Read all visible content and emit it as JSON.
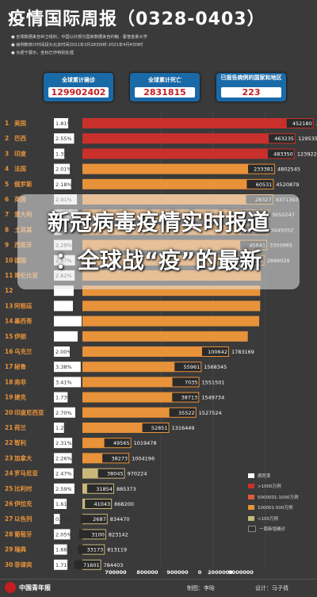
{
  "title": "疫情国际周报（0328-0403）",
  "notes": [
    "● 全球数据来自世卫组织，中国以外部分国家数据来自约翰 · 霍普金斯大学",
    "● 病例数统计时间段为北京时间2021年3月28日9时-2021年4月4日9时",
    "● 为便于展示，坐标已作特别处理"
  ],
  "cards": {
    "confirmed": {
      "label": "全球累计确诊",
      "value": "129902402"
    },
    "deaths": {
      "label": "全球累计死亡",
      "value": "2831815"
    },
    "countries": {
      "label": "已报告病例的国家和地区",
      "value": "223"
    }
  },
  "banner": {
    "line1": "新冠病毒疫情实时报道",
    "line2": "：全球战“疫”的最新"
  },
  "chart_data": {
    "type": "bar",
    "x_ticks": [
      "700000",
      "800000",
      "900000",
      "0",
      "2000000",
      "9000000"
    ],
    "legend": [
      {
        "label": "病死率",
        "color": "#ffffff"
      },
      {
        "label": ">1000万例",
        "color": "#c9302c"
      },
      {
        "label": "5000001-1000万例",
        "color": "#e05a3a"
      },
      {
        "label": "100001-500万例",
        "color": "#e8923a"
      },
      {
        "label": "<100万例",
        "color": "#c8b97a"
      },
      {
        "label": "一周新增确诊",
        "color": "#333333"
      }
    ],
    "rows": [
      {
        "rank": "1",
        "country": "美国",
        "fatality": "1.81%",
        "fatality_value": 1.81,
        "weekly": "452180",
        "total": "30670408",
        "total_value": 30670408,
        "tier": "gt10m"
      },
      {
        "rank": "2",
        "country": "巴西",
        "fatality": "2.55%",
        "fatality_value": 2.55,
        "weekly": "463235",
        "total": "12953597",
        "total_value": 12953597,
        "tier": "gt10m"
      },
      {
        "rank": "3",
        "country": "印度",
        "fatality": "1.32%",
        "fatality_value": 1.32,
        "weekly": "483350",
        "total": "12392260",
        "total_value": 12392260,
        "tier": "gt10m"
      },
      {
        "rank": "4",
        "country": "法国",
        "fatality": "2.01%",
        "fatality_value": 2.01,
        "weekly": "233381",
        "total": "4802545",
        "total_value": 4802545,
        "tier": "1m5m"
      },
      {
        "rank": "5",
        "country": "俄罗斯",
        "fatality": "2.18%",
        "fatality_value": 2.18,
        "weekly": "60531",
        "total": "4520879",
        "total_value": 4520879,
        "tier": "1m5m"
      },
      {
        "rank": "6",
        "country": "英国",
        "fatality": "2.91%",
        "fatality_value": 2.91,
        "weekly": "28327",
        "total": "4371393",
        "total_value": 4371393,
        "tier": "1m5m"
      },
      {
        "rank": "7",
        "country": "意大利",
        "fatality": "3.03%",
        "fatality_value": 3.03,
        "weekly": "137794",
        "total": "3650247",
        "total_value": 3650247,
        "tier": "1m5m"
      },
      {
        "rank": "8",
        "country": "土耳其",
        "fatality": "0.93%",
        "fatality_value": 0.93,
        "weekly": "265937",
        "total": "3445052",
        "total_value": 3445052,
        "tier": "1m5m"
      },
      {
        "rank": "9",
        "country": "西班牙",
        "fatality": "2.29%",
        "fatality_value": 2.29,
        "weekly": "45641",
        "total": "3300965",
        "total_value": 3300965,
        "tier": "1m5m"
      },
      {
        "rank": "10",
        "country": "德国",
        "fatality": "2.67%",
        "fatality_value": 2.67,
        "weekly": "115333",
        "total": "2886029",
        "total_value": 2886029,
        "tier": "1m5m"
      },
      {
        "rank": "11",
        "country": "哥伦比亚",
        "fatality": "2.62%",
        "fatality_value": 2.62,
        "weekly": "",
        "total": "",
        "total_value": 2430000,
        "tier": "1m5m"
      },
      {
        "rank": "12",
        "country": "",
        "fatality": "",
        "fatality_value": 2.5,
        "weekly": "",
        "total": "",
        "total_value": 2360000,
        "tier": "1m5m"
      },
      {
        "rank": "13",
        "country": "阿根廷",
        "fatality": "",
        "fatality_value": 2.4,
        "weekly": "",
        "total": "",
        "total_value": 2360000,
        "tier": "1m5m"
      },
      {
        "rank": "14",
        "country": "墨西哥",
        "fatality": "",
        "fatality_value": 3.5,
        "weekly": "",
        "total": "",
        "total_value": 2250000,
        "tier": "1m5m"
      },
      {
        "rank": "15",
        "country": "伊朗",
        "fatality": "",
        "fatality_value": 3.0,
        "weekly": "",
        "total": "",
        "total_value": 1930000,
        "tier": "1m5m"
      },
      {
        "rank": "16",
        "country": "乌克兰",
        "fatality": "2.00%",
        "fatality_value": 2.0,
        "weekly": "100642",
        "total": "1783169",
        "total_value": 1783169,
        "tier": "1m5m"
      },
      {
        "rank": "17",
        "country": "秘鲁",
        "fatality": "3.38%",
        "fatality_value": 3.38,
        "weekly": "55961",
        "total": "1568345",
        "total_value": 1568345,
        "tier": "1m5m"
      },
      {
        "rank": "18",
        "country": "南非",
        "fatality": "3.41%",
        "fatality_value": 3.41,
        "weekly": "7035",
        "total": "1551501",
        "total_value": 1551501,
        "tier": "1m5m"
      },
      {
        "rank": "19",
        "country": "捷克",
        "fatality": "1.73%",
        "fatality_value": 1.73,
        "weekly": "38713",
        "total": "1549734",
        "total_value": 1549734,
        "tier": "1m5m"
      },
      {
        "rank": "20",
        "country": "印度尼西亚",
        "fatality": "2.70%",
        "fatality_value": 2.7,
        "weekly": "35522",
        "total": "1527524",
        "total_value": 1527524,
        "tier": "1m5m"
      },
      {
        "rank": "21",
        "country": "荷兰",
        "fatality": "1.27%",
        "fatality_value": 1.27,
        "weekly": "52851",
        "total": "1316449",
        "total_value": 1316449,
        "tier": "1m5m"
      },
      {
        "rank": "22",
        "country": "智利",
        "fatality": "2.31%",
        "fatality_value": 2.31,
        "weekly": "49565",
        "total": "1019478",
        "total_value": 1019478,
        "tier": "1m5m"
      },
      {
        "rank": "23",
        "country": "加拿大",
        "fatality": "2.26%",
        "fatality_value": 2.26,
        "weekly": "38273",
        "total": "1004196",
        "total_value": 1004196,
        "tier": "1m5m"
      },
      {
        "rank": "24",
        "country": "罗马尼亚",
        "fatality": "2.47%",
        "fatality_value": 2.47,
        "weekly": "38045",
        "total": "970224",
        "total_value": 970224,
        "tier": "lt1m"
      },
      {
        "rank": "25",
        "country": "比利时",
        "fatality": "2.59%",
        "fatality_value": 2.59,
        "weekly": "31854",
        "total": "885373",
        "total_value": 885373,
        "tier": "lt1m"
      },
      {
        "rank": "26",
        "country": "伊拉克",
        "fatality": "1.61%",
        "fatality_value": 1.61,
        "weekly": "41043",
        "total": "868200",
        "total_value": 868200,
        "tier": "lt1m"
      },
      {
        "rank": "27",
        "country": "以色列",
        "fatality": "0.75%",
        "fatality_value": 0.75,
        "weekly": "2687",
        "total": "834470",
        "total_value": 834470,
        "tier": "lt1m"
      },
      {
        "rank": "28",
        "country": "葡萄牙",
        "fatality": "2.05%",
        "fatality_value": 2.05,
        "weekly": "3100",
        "total": "823142",
        "total_value": 823142,
        "tier": "lt1m"
      },
      {
        "rank": "29",
        "country": "瑞典",
        "fatality": "1.66%",
        "fatality_value": 1.66,
        "weekly": "33173",
        "total": "813119",
        "total_value": 813119,
        "tier": "lt1m"
      },
      {
        "rank": "30",
        "country": "菲律宾",
        "fatality": "1.71%",
        "fatality_value": 1.71,
        "weekly": "71601",
        "total": "784403",
        "total_value": 784403,
        "tier": "lt1m"
      }
    ]
  },
  "footer": {
    "brand": "中国青年报",
    "producer": "制图：李晗",
    "designer": "设计：马子倩"
  }
}
